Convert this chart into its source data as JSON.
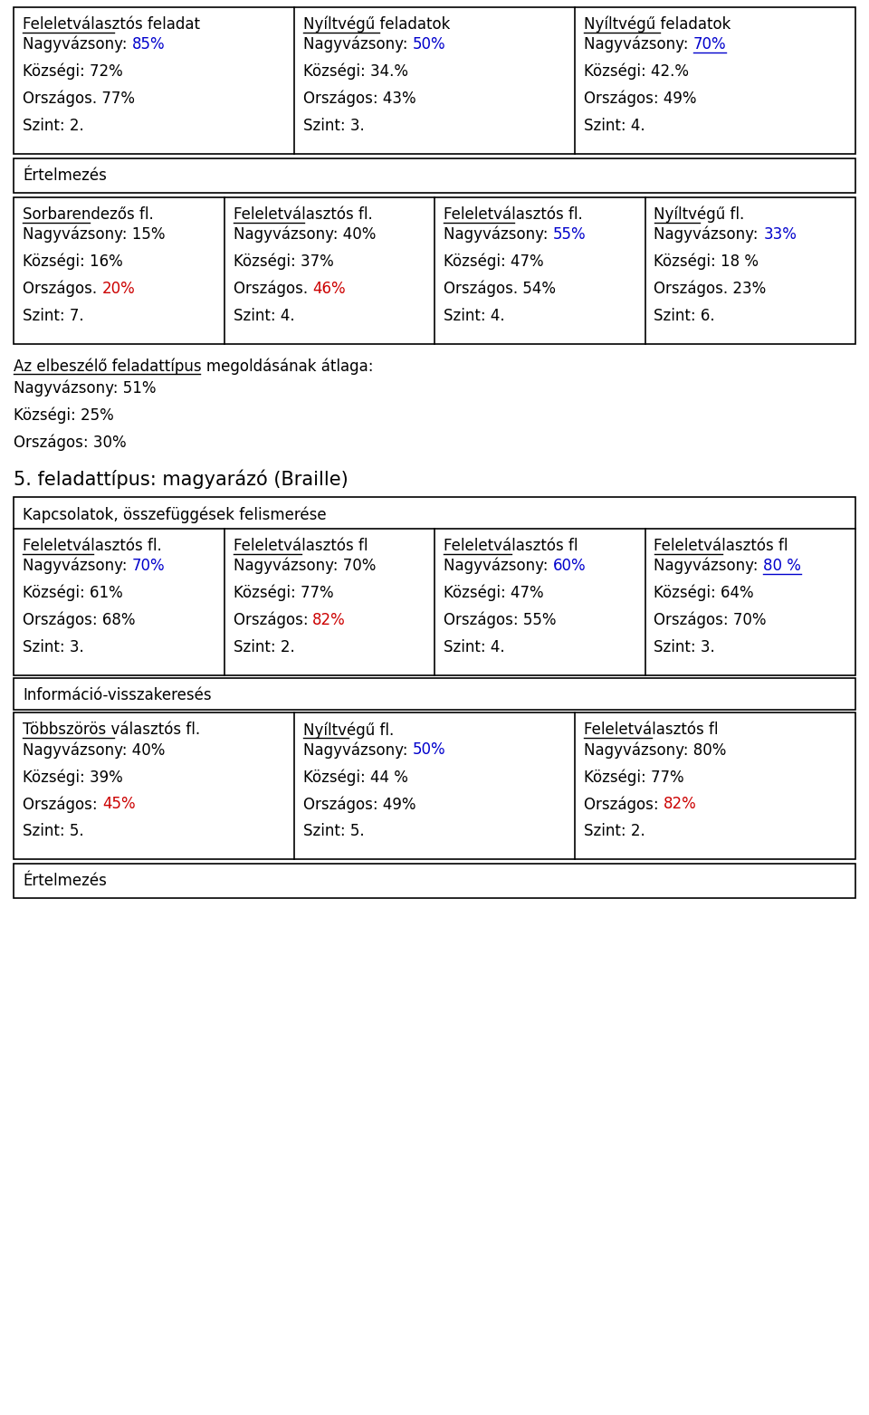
{
  "bg_color": "#ffffff",
  "section1": {
    "cols": [
      {
        "header": "Feleletválasztós feladat",
        "lines": [
          {
            "prefix": "Nagyvázsony: ",
            "value": "85%",
            "vcolor": "#0000cc"
          },
          {
            "prefix": "Községi: 72%",
            "value": "",
            "vcolor": "black"
          },
          {
            "prefix": "Országos. 77%",
            "value": "",
            "vcolor": "black"
          },
          {
            "prefix": "Szint: 2.",
            "value": "",
            "vcolor": "black"
          }
        ]
      },
      {
        "header": "Nyíltvégű feladatok",
        "lines": [
          {
            "prefix": "Nagyvázsony: ",
            "value": "50%",
            "vcolor": "#0000cc"
          },
          {
            "prefix": "Községi: 34.%",
            "value": "",
            "vcolor": "black"
          },
          {
            "prefix": "Országos: 43%",
            "value": "",
            "vcolor": "black"
          },
          {
            "prefix": "Szint: 3.",
            "value": "",
            "vcolor": "black"
          }
        ]
      },
      {
        "header": "Nyíltvégű feladatok",
        "lines": [
          {
            "prefix": "Nagyvázsony: ",
            "value": "70%",
            "vcolor": "#0000cc",
            "ul_value": true
          },
          {
            "prefix": "Községi: 42.%",
            "value": "",
            "vcolor": "black"
          },
          {
            "prefix": "Országos: 49%",
            "value": "",
            "vcolor": "black"
          },
          {
            "prefix": "Szint: 4.",
            "value": "",
            "vcolor": "black"
          }
        ]
      }
    ]
  },
  "ertelmezés1": "Értelmezés",
  "section2": {
    "cols": [
      {
        "header": "Sorbarendezős fl.",
        "lines": [
          {
            "prefix": "Nagyvázsony: 15%",
            "value": "",
            "vcolor": "black"
          },
          {
            "prefix": "Községi: 16%",
            "value": "",
            "vcolor": "black"
          },
          {
            "prefix": "Országos. ",
            "value": "20%",
            "vcolor": "#cc0000"
          },
          {
            "prefix": "Szint: 7.",
            "value": "",
            "vcolor": "black"
          }
        ]
      },
      {
        "header": "Feleletválasztós fl.",
        "lines": [
          {
            "prefix": "Nagyvázsony: 40%",
            "value": "",
            "vcolor": "black"
          },
          {
            "prefix": "Községi: 37%",
            "value": "",
            "vcolor": "black"
          },
          {
            "prefix": "Országos. ",
            "value": "46%",
            "vcolor": "#cc0000"
          },
          {
            "prefix": "Szint: 4.",
            "value": "",
            "vcolor": "black"
          }
        ]
      },
      {
        "header": "Feleletválasztós fl.",
        "lines": [
          {
            "prefix": "Nagyvázsony: ",
            "value": "55%",
            "vcolor": "#0000cc"
          },
          {
            "prefix": "Községi: 47%",
            "value": "",
            "vcolor": "black"
          },
          {
            "prefix": "Országos. 54%",
            "value": "",
            "vcolor": "black"
          },
          {
            "prefix": "Szint: 4.",
            "value": "",
            "vcolor": "black"
          }
        ]
      },
      {
        "header": "Nyíltvégű fl.",
        "lines": [
          {
            "prefix": "Nagyvázsony: ",
            "value": "33%",
            "vcolor": "#0000cc"
          },
          {
            "prefix": "Községi: 18 %",
            "value": "",
            "vcolor": "black"
          },
          {
            "prefix": "Országos. 23%",
            "value": "",
            "vcolor": "black"
          },
          {
            "prefix": "Szint: 6.",
            "value": "",
            "vcolor": "black"
          }
        ]
      }
    ]
  },
  "average_header": "Az elbeszélő feladattípus megoldásának átlaga:",
  "average_lines": [
    "Nagyvázsony: 51%",
    "Községi: 25%",
    "Országos: 30%"
  ],
  "section3_title": "5. feladattípus: magyarázó (Braille)",
  "section3_subtitle": "Kapcsolatok, összefüggések felismerése",
  "section3": {
    "cols": [
      {
        "header": "Feleletválasztós fl.",
        "lines": [
          {
            "prefix": "Nagyvázsony: ",
            "value": "70%",
            "vcolor": "#0000cc"
          },
          {
            "prefix": "Községi: 61%",
            "value": "",
            "vcolor": "black"
          },
          {
            "prefix": "Országos: 68%",
            "value": "",
            "vcolor": "black"
          },
          {
            "prefix": "Szint: 3.",
            "value": "",
            "vcolor": "black"
          }
        ]
      },
      {
        "header": "Feleletválasztós fl",
        "lines": [
          {
            "prefix": "Nagyvázsony: 70%",
            "value": "",
            "vcolor": "black"
          },
          {
            "prefix": "Községi: 77%",
            "value": "",
            "vcolor": "black"
          },
          {
            "prefix": "Országos: ",
            "value": "82%",
            "vcolor": "#cc0000"
          },
          {
            "prefix": "Szint: 2.",
            "value": "",
            "vcolor": "black"
          }
        ]
      },
      {
        "header": "Feleletválasztós fl",
        "lines": [
          {
            "prefix": "Nagyvázsony: ",
            "value": "60%",
            "vcolor": "#0000cc"
          },
          {
            "prefix": "Községi: 47%",
            "value": "",
            "vcolor": "black"
          },
          {
            "prefix": "Országos: 55%",
            "value": "",
            "vcolor": "black"
          },
          {
            "prefix": "Szint: 4.",
            "value": "",
            "vcolor": "black"
          }
        ]
      },
      {
        "header": "Feleletválasztós fl",
        "lines": [
          {
            "prefix": "Nagyvázsony: ",
            "value": "80 %",
            "vcolor": "#0000cc",
            "ul_value": true
          },
          {
            "prefix": "Községi: 64%",
            "value": "",
            "vcolor": "black"
          },
          {
            "prefix": "Országos: 70%",
            "value": "",
            "vcolor": "black"
          },
          {
            "prefix": "Szint: 3.",
            "value": "",
            "vcolor": "black"
          }
        ]
      }
    ]
  },
  "info_label": "Információ-visszakeresés",
  "section4": {
    "cols": [
      {
        "header": "Többszörös választós fl.",
        "lines": [
          {
            "prefix": "Nagyvázsony: 40%",
            "value": "",
            "vcolor": "black"
          },
          {
            "prefix": "Községi: 39%",
            "value": "",
            "vcolor": "black"
          },
          {
            "prefix": "Országos: ",
            "value": "45%",
            "vcolor": "#cc0000"
          },
          {
            "prefix": "Szint: 5.",
            "value": "",
            "vcolor": "black"
          }
        ]
      },
      {
        "header": "Nyíltvégű fl.",
        "lines": [
          {
            "prefix": "Nagyvázsony: ",
            "value": "50%",
            "vcolor": "#0000cc"
          },
          {
            "prefix": "Községi: 44 %",
            "value": "",
            "vcolor": "black"
          },
          {
            "prefix": "Országos: 49%",
            "value": "",
            "vcolor": "black"
          },
          {
            "prefix": "Szint: 5.",
            "value": "",
            "vcolor": "black"
          }
        ]
      },
      {
        "header": "Feleletválasztós fl",
        "lines": [
          {
            "prefix": "Nagyvázsony: 80%",
            "value": "",
            "vcolor": "black"
          },
          {
            "prefix": "Községi: 77%",
            "value": "",
            "vcolor": "black"
          },
          {
            "prefix": "Országos: ",
            "value": "82%",
            "vcolor": "#cc0000"
          },
          {
            "prefix": "Szint: 2.",
            "value": "",
            "vcolor": "black"
          }
        ]
      }
    ]
  },
  "ertelmezés2": "Értelmezés"
}
